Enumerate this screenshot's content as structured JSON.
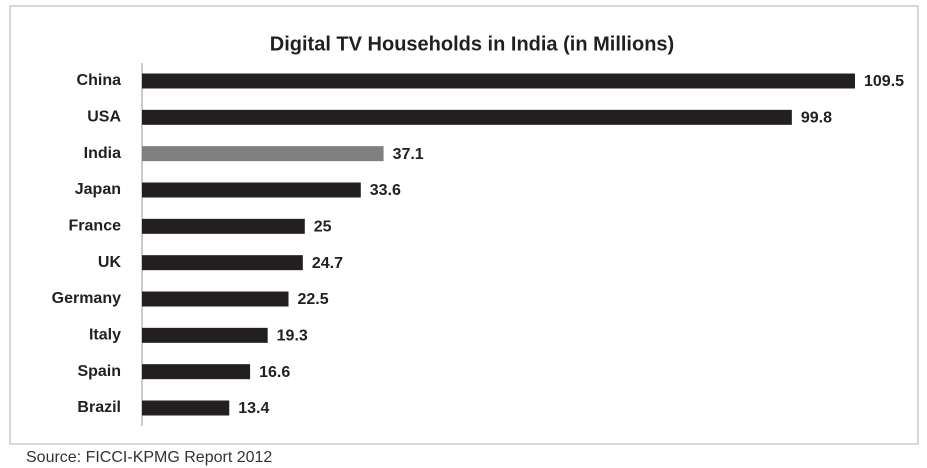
{
  "chart_data": {
    "type": "bar",
    "orientation": "horizontal",
    "title": "Digital TV Households in India (in Millions)",
    "categories": [
      "China",
      "USA",
      "India",
      "Japan",
      "France",
      "UK",
      "Germany",
      "Italy",
      "Spain",
      "Brazil"
    ],
    "values": [
      109.5,
      99.8,
      37.1,
      33.6,
      25,
      24.7,
      22.5,
      19.3,
      16.6,
      13.4
    ],
    "colors": [
      "#231f20",
      "#231f20",
      "#808080",
      "#231f20",
      "#231f20",
      "#231f20",
      "#231f20",
      "#231f20",
      "#231f20",
      "#231f20"
    ],
    "source": "Source: FICCI-KPMG Report 2012"
  }
}
